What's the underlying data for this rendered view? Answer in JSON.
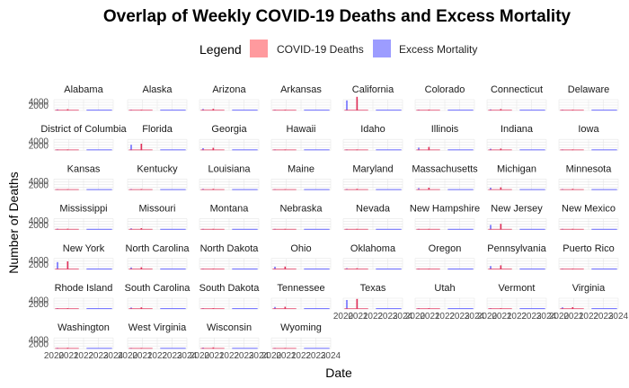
{
  "chart_data": {
    "type": "area",
    "title": "Overlap of Weekly COVID-19 Deaths and Excess Mortality",
    "xlabel": "Date",
    "ylabel": "Number of Deaths",
    "legend": {
      "title": "Legend",
      "placement": "top",
      "entries": [
        {
          "name": "COVID-19 Deaths",
          "color": "#ff9a9e"
        },
        {
          "name": "Excess Mortality",
          "color": "#9c9cff"
        }
      ]
    },
    "colors": {
      "covid": "#e0305a",
      "excess": "#5a5aff"
    },
    "x_range": [
      "2020",
      "2024"
    ],
    "x_ticks": [
      "2020",
      "2021",
      "2022",
      "2023",
      "2024"
    ],
    "y_ticks": [
      "2000",
      "4000"
    ],
    "ylim": [
      0,
      5000
    ],
    "grid": true,
    "facets": [
      {
        "name": "Alabama",
        "covid": 350,
        "excess": 300
      },
      {
        "name": "Alaska",
        "covid": 30,
        "excess": 40
      },
      {
        "name": "Arizona",
        "covid": 450,
        "excess": 400
      },
      {
        "name": "Arkansas",
        "covid": 200,
        "excess": 180
      },
      {
        "name": "California",
        "covid": 3800,
        "excess": 2800
      },
      {
        "name": "Colorado",
        "covid": 250,
        "excess": 200
      },
      {
        "name": "Connecticut",
        "covid": 400,
        "excess": 300
      },
      {
        "name": "Delaware",
        "covid": 60,
        "excess": 50
      },
      {
        "name": "District of Columbia",
        "covid": 50,
        "excess": 40
      },
      {
        "name": "Florida",
        "covid": 1800,
        "excess": 1500
      },
      {
        "name": "Georgia",
        "covid": 650,
        "excess": 550
      },
      {
        "name": "Hawaii",
        "covid": 40,
        "excess": 40
      },
      {
        "name": "Idaho",
        "covid": 100,
        "excess": 90
      },
      {
        "name": "Illinois",
        "covid": 900,
        "excess": 700
      },
      {
        "name": "Indiana",
        "covid": 450,
        "excess": 400
      },
      {
        "name": "Iowa",
        "covid": 200,
        "excess": 150
      },
      {
        "name": "Kansas",
        "covid": 150,
        "excess": 120
      },
      {
        "name": "Kentucky",
        "covid": 250,
        "excess": 250
      },
      {
        "name": "Louisiana",
        "covid": 300,
        "excess": 300
      },
      {
        "name": "Maine",
        "covid": 50,
        "excess": 40
      },
      {
        "name": "Maryland",
        "covid": 300,
        "excess": 250
      },
      {
        "name": "Massachusetts",
        "covid": 600,
        "excess": 500
      },
      {
        "name": "Michigan",
        "covid": 700,
        "excess": 600
      },
      {
        "name": "Minnesota",
        "covid": 300,
        "excess": 250
      },
      {
        "name": "Mississippi",
        "covid": 250,
        "excess": 250
      },
      {
        "name": "Missouri",
        "covid": 400,
        "excess": 350
      },
      {
        "name": "Montana",
        "covid": 60,
        "excess": 50
      },
      {
        "name": "Nebraska",
        "covid": 80,
        "excess": 70
      },
      {
        "name": "Nevada",
        "covid": 200,
        "excess": 180
      },
      {
        "name": "New Hampshire",
        "covid": 60,
        "excess": 50
      },
      {
        "name": "New Jersey",
        "covid": 1600,
        "excess": 1300
      },
      {
        "name": "New Mexico",
        "covid": 100,
        "excess": 90
      },
      {
        "name": "New York",
        "covid": 2200,
        "excess": 2000
      },
      {
        "name": "North Carolina",
        "covid": 550,
        "excess": 500
      },
      {
        "name": "North Dakota",
        "covid": 60,
        "excess": 50
      },
      {
        "name": "Ohio",
        "covid": 750,
        "excess": 700
      },
      {
        "name": "Oklahoma",
        "covid": 300,
        "excess": 300
      },
      {
        "name": "Oregon",
        "covid": 150,
        "excess": 120
      },
      {
        "name": "Pennsylvania",
        "covid": 1100,
        "excess": 900
      },
      {
        "name": "Puerto Rico",
        "covid": 100,
        "excess": 90
      },
      {
        "name": "Rhode Island",
        "covid": 80,
        "excess": 60
      },
      {
        "name": "South Carolina",
        "covid": 450,
        "excess": 400
      },
      {
        "name": "South Dakota",
        "covid": 60,
        "excess": 50
      },
      {
        "name": "Tennessee",
        "covid": 600,
        "excess": 550
      },
      {
        "name": "Texas",
        "covid": 2800,
        "excess": 2500
      },
      {
        "name": "Utah",
        "covid": 100,
        "excess": 90
      },
      {
        "name": "Vermont",
        "covid": 30,
        "excess": 30
      },
      {
        "name": "Virginia",
        "covid": 500,
        "excess": 450
      },
      {
        "name": "Washington",
        "covid": 250,
        "excess": 220
      },
      {
        "name": "West Virginia",
        "covid": 150,
        "excess": 130
      },
      {
        "name": "Wisconsin",
        "covid": 350,
        "excess": 300
      },
      {
        "name": "Wyoming",
        "covid": 40,
        "excess": 30
      }
    ]
  }
}
